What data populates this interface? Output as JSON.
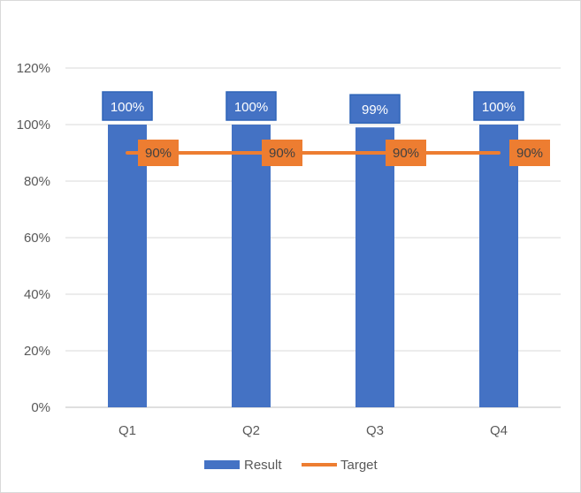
{
  "chart_data": {
    "type": "bar",
    "categories": [
      "Q1",
      "Q2",
      "Q3",
      "Q4"
    ],
    "series": [
      {
        "name": "Result",
        "kind": "bar",
        "color": "#4472C4",
        "values": [
          100,
          100,
          99,
          100
        ],
        "labels": [
          "100%",
          "100%",
          "99%",
          "100%"
        ]
      },
      {
        "name": "Target",
        "kind": "line",
        "color": "#ED7D31",
        "values": [
          90,
          90,
          90,
          90
        ],
        "labels": [
          "90%",
          "90%",
          "90%",
          "90%"
        ]
      }
    ],
    "ylim": [
      0,
      120
    ],
    "yticks": [
      0,
      20,
      40,
      60,
      80,
      100,
      120
    ],
    "ytick_labels": [
      "0%",
      "20%",
      "40%",
      "60%",
      "80%",
      "100%",
      "120%"
    ],
    "grid": true,
    "legend_position": "bottom"
  }
}
